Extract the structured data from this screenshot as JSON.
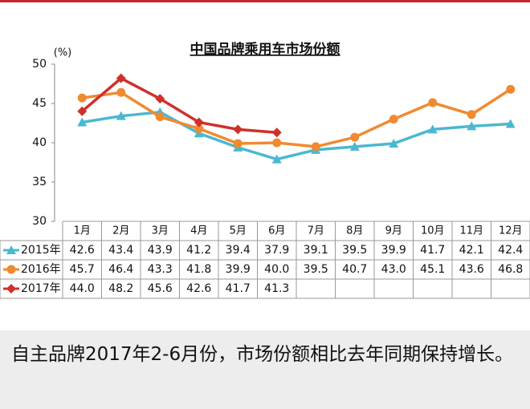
{
  "chart_data": {
    "type": "line",
    "title": "中国品牌乘用车市场份额",
    "y_unit": "(%)",
    "categories": [
      "1月",
      "2月",
      "3月",
      "4月",
      "5月",
      "6月",
      "7月",
      "8月",
      "9月",
      "10月",
      "11月",
      "12月"
    ],
    "ylim": [
      30,
      50
    ],
    "yticks": [
      30,
      35,
      40,
      45,
      50
    ],
    "grid": false,
    "series": [
      {
        "name": "2015年",
        "color": "#4bb8d0",
        "marker": "triangle",
        "values": [
          42.6,
          43.4,
          43.9,
          41.2,
          39.4,
          37.9,
          39.1,
          39.5,
          39.9,
          41.7,
          42.1,
          42.4
        ],
        "value_labels": [
          "42.6",
          "43.4",
          "43.9",
          "41.2",
          "39.4",
          "37.9",
          "39.1",
          "39.5",
          "39.9",
          "41.7",
          "42.1",
          "42.4"
        ]
      },
      {
        "name": "2016年",
        "color": "#f08a30",
        "marker": "circle",
        "values": [
          45.7,
          46.4,
          43.3,
          41.8,
          39.9,
          40.0,
          39.5,
          40.7,
          43.0,
          45.1,
          43.6,
          46.8
        ],
        "value_labels": [
          "45.7",
          "46.4",
          "43.3",
          "41.8",
          "39.9",
          "40.0",
          "39.5",
          "40.7",
          "43.0",
          "45.1",
          "43.6",
          "46.8"
        ]
      },
      {
        "name": "2017年",
        "color": "#d0302b",
        "marker": "diamond",
        "values": [
          44.0,
          48.2,
          45.6,
          42.6,
          41.7,
          41.3,
          null,
          null,
          null,
          null,
          null,
          null
        ],
        "value_labels": [
          "44.0",
          "48.2",
          "45.6",
          "42.6",
          "41.7",
          "41.3",
          null,
          null,
          null,
          null,
          null,
          null
        ]
      }
    ]
  },
  "caption": "自主品牌2017年2-6月份，市场份额相比去年同期保持增长。"
}
